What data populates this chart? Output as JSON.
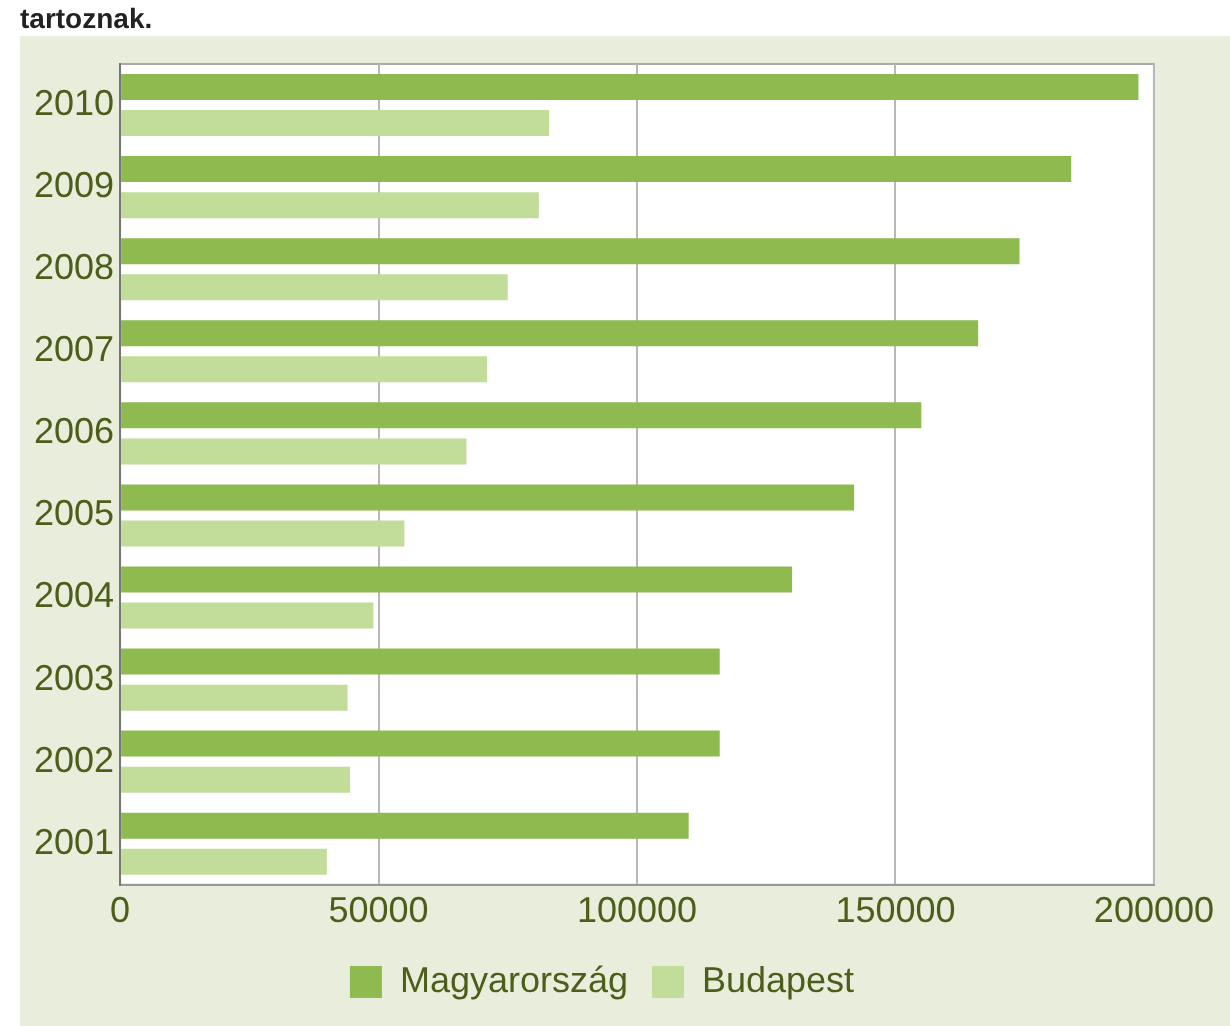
{
  "chart_data": {
    "type": "bar",
    "orientation": "horizontal",
    "title": "tartoznak.",
    "categories": [
      "2010",
      "2009",
      "2008",
      "2007",
      "2006",
      "2005",
      "2004",
      "2003",
      "2002",
      "2001"
    ],
    "series": [
      {
        "name": "Magyarország",
        "color": "#8fba50",
        "values": [
          197000,
          184000,
          174000,
          166000,
          155000,
          142000,
          130000,
          116000,
          116000,
          110000
        ]
      },
      {
        "name": "Budapest",
        "color": "#c2dc9a",
        "values": [
          83000,
          81000,
          75000,
          71000,
          67000,
          55000,
          49000,
          44000,
          44500,
          40000
        ]
      }
    ],
    "xlim": [
      0,
      200000
    ],
    "xticks": [
      0,
      50000,
      100000,
      150000,
      200000
    ],
    "grid": "x",
    "legend": "bottom"
  }
}
